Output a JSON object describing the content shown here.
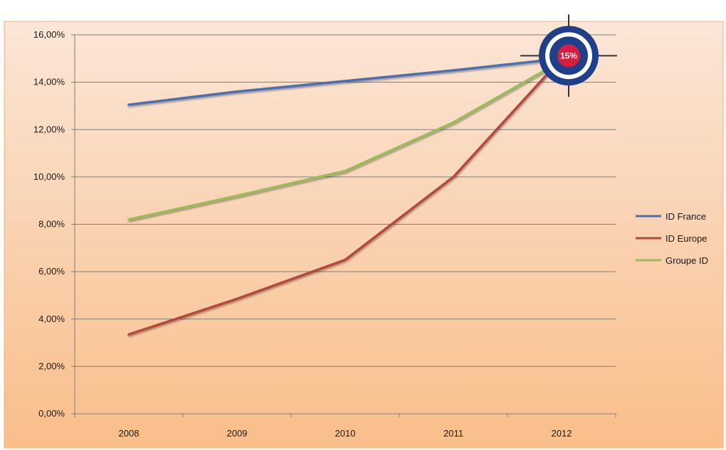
{
  "chart_data": {
    "type": "line",
    "title": "",
    "xlabel": "",
    "ylabel": "",
    "categories": [
      "2008",
      "2009",
      "2010",
      "2011",
      "2012"
    ],
    "ylim": [
      0,
      16
    ],
    "y_ticks": [
      "0,00%",
      "2,00%",
      "4,00%",
      "6,00%",
      "8,00%",
      "10,00%",
      "12,00%",
      "14,00%",
      "16,00%"
    ],
    "grid": true,
    "legend_position": "right",
    "series": [
      {
        "name": "ID France",
        "color": "#4a6fb5",
        "values": [
          13.05,
          13.6,
          14.05,
          14.5,
          15.0
        ]
      },
      {
        "name": "ID Europe",
        "color": "#b5473a",
        "values": [
          3.35,
          4.85,
          6.5,
          10.0,
          15.0
        ]
      },
      {
        "name": "Groupe ID",
        "color": "#9bbb59",
        "values": [
          8.2,
          9.2,
          10.25,
          12.3,
          14.9
        ]
      }
    ],
    "target": {
      "label": "15%",
      "category": "2012",
      "value": 15.0,
      "colors": {
        "outer": "#1f3f8a",
        "inner": "#d61f3c"
      }
    }
  },
  "theme": {
    "bg_top": "#fbe6d7",
    "bg_bottom": "#f9be8a",
    "grid": "#7f7f7f",
    "axis": "#7f7f7f"
  }
}
